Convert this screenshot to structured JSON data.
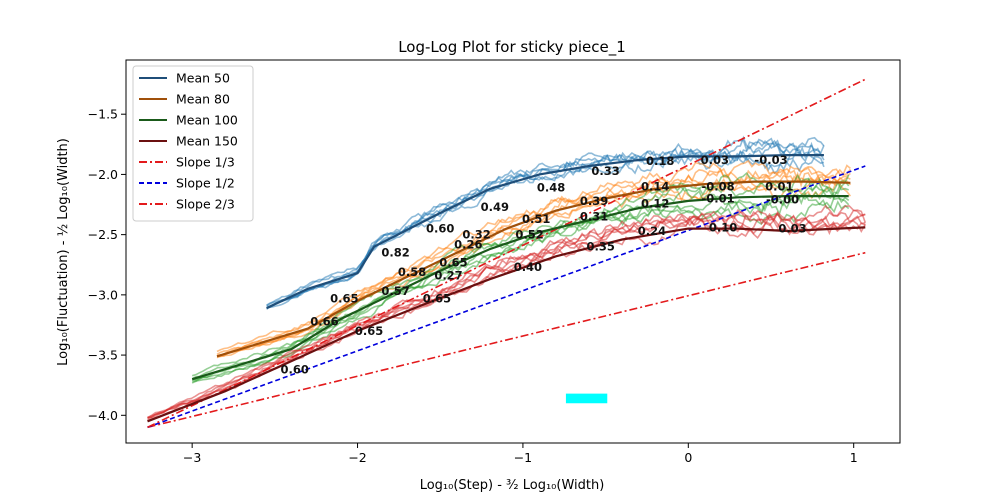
{
  "chart_data": {
    "type": "line",
    "title": "Log-Log Plot for sticky piece_1",
    "xlabel": "Log₁₀(Step) - ³⁄₂ Log₁₀(Width)",
    "ylabel": "Log₁₀(Fluctuation) - ½ Log₁₀(Width)",
    "xlim": [
      -3.4,
      1.28
    ],
    "ylim": [
      -4.23,
      -1.05
    ],
    "x_ticks": [
      -3,
      -2,
      -1,
      0,
      1
    ],
    "x_tick_labels": [
      "−3",
      "−2",
      "−1",
      "0",
      "1"
    ],
    "y_ticks": [
      -4.0,
      -3.5,
      -3.0,
      -2.5,
      -2.0,
      -1.5
    ],
    "y_tick_labels": [
      "−4.0",
      "−3.5",
      "−3.0",
      "−2.5",
      "−2.0",
      "−1.5"
    ],
    "grid": false,
    "legend_position": "top-left",
    "legend": [
      {
        "label": "Mean 50",
        "color": "#1f4e79",
        "style": "solid"
      },
      {
        "label": "Mean 80",
        "color": "#a0500a",
        "style": "solid"
      },
      {
        "label": "Mean 100",
        "color": "#1a5a1a",
        "style": "solid"
      },
      {
        "label": "Mean 150",
        "color": "#6b1010",
        "style": "solid"
      },
      {
        "label": "Slope 1/3",
        "color": "#e31a1c",
        "style": "dashdot"
      },
      {
        "label": "Slope 1/2",
        "color": "#0000dd",
        "style": "dashed"
      },
      {
        "label": "Slope 2/3",
        "color": "#e31a1c",
        "style": "dashdot"
      }
    ],
    "mean_series": [
      {
        "name": "Mean 50",
        "color": "#1f4e79",
        "x": [
          -2.55,
          -2.3,
          -2.0,
          -1.9,
          -1.5,
          -1.2,
          -0.9,
          -0.6,
          -0.3,
          0.0,
          0.3,
          0.6,
          0.82
        ],
        "y": [
          -3.11,
          -2.95,
          -2.82,
          -2.6,
          -2.32,
          -2.12,
          -2.0,
          -1.93,
          -1.88,
          -1.85,
          -1.85,
          -1.84,
          -1.84
        ]
      },
      {
        "name": "Mean 80",
        "color": "#a0500a",
        "x": [
          -2.85,
          -2.3,
          -2.0,
          -1.7,
          -1.4,
          -1.1,
          -0.8,
          -0.5,
          -0.2,
          0.1,
          0.4,
          0.7,
          0.98
        ],
        "y": [
          -3.51,
          -3.28,
          -3.05,
          -2.85,
          -2.65,
          -2.45,
          -2.3,
          -2.2,
          -2.12,
          -2.08,
          -2.06,
          -2.06,
          -2.07
        ]
      },
      {
        "name": "Mean 100",
        "color": "#1a5a1a",
        "x": [
          -3.0,
          -2.4,
          -2.1,
          -1.8,
          -1.5,
          -1.2,
          -0.9,
          -0.6,
          -0.3,
          0.0,
          0.3,
          0.6,
          0.97
        ],
        "y": [
          -3.7,
          -3.45,
          -3.2,
          -3.0,
          -2.8,
          -2.62,
          -2.48,
          -2.38,
          -2.28,
          -2.22,
          -2.19,
          -2.18,
          -2.18
        ]
      },
      {
        "name": "Mean 150",
        "color": "#6b1010",
        "x": [
          -3.27,
          -2.8,
          -2.4,
          -2.0,
          -1.6,
          -1.2,
          -0.8,
          -0.4,
          0.0,
          0.3,
          0.6,
          0.9,
          1.07
        ],
        "y": [
          -4.05,
          -3.8,
          -3.55,
          -3.3,
          -3.08,
          -2.87,
          -2.68,
          -2.54,
          -2.45,
          -2.45,
          -2.47,
          -2.45,
          -2.44
        ]
      }
    ],
    "reference_lines": [
      {
        "name": "Slope 1/3",
        "color": "#e31a1c",
        "style": "dashdot",
        "x": [
          -3.27,
          1.07
        ],
        "y": [
          -4.1,
          -2.65
        ]
      },
      {
        "name": "Slope 1/2",
        "color": "#0000dd",
        "style": "dashed",
        "x": [
          -3.27,
          1.07
        ],
        "y": [
          -4.1,
          -1.93
        ]
      },
      {
        "name": "Slope 2/3",
        "color": "#e31a1c",
        "style": "dashdot",
        "x": [
          -3.27,
          1.07
        ],
        "y": [
          -4.1,
          -1.21
        ]
      }
    ],
    "annotations": [
      {
        "text": "0.33",
        "x": -0.5,
        "y": -1.97
      },
      {
        "text": "0.18",
        "x": -0.17,
        "y": -1.89
      },
      {
        "text": "0.03",
        "x": 0.16,
        "y": -1.88
      },
      {
        "text": "-0.03",
        "x": 0.5,
        "y": -1.88
      },
      {
        "text": "0.48",
        "x": -0.83,
        "y": -2.11
      },
      {
        "text": "0.14",
        "x": -0.2,
        "y": -2.1
      },
      {
        "text": "-0.08",
        "x": 0.18,
        "y": -2.1
      },
      {
        "text": "0.01",
        "x": 0.55,
        "y": -2.1
      },
      {
        "text": "0.49",
        "x": -1.17,
        "y": -2.27
      },
      {
        "text": "0.39",
        "x": -0.57,
        "y": -2.22
      },
      {
        "text": "0.12",
        "x": -0.2,
        "y": -2.24
      },
      {
        "text": "-0.01",
        "x": 0.18,
        "y": -2.2
      },
      {
        "text": "-0.00",
        "x": 0.57,
        "y": -2.21
      },
      {
        "text": "0.51",
        "x": -0.92,
        "y": -2.37
      },
      {
        "text": "0.31",
        "x": -0.57,
        "y": -2.35
      },
      {
        "text": "0.60",
        "x": -1.5,
        "y": -2.45
      },
      {
        "text": "0.32",
        "x": -1.28,
        "y": -2.5
      },
      {
        "text": "0.52",
        "x": -0.96,
        "y": -2.5
      },
      {
        "text": "0.24",
        "x": -0.22,
        "y": -2.47
      },
      {
        "text": "0.10",
        "x": 0.21,
        "y": -2.44
      },
      {
        "text": "0.03",
        "x": 0.63,
        "y": -2.45
      },
      {
        "text": "0.26",
        "x": -1.33,
        "y": -2.58
      },
      {
        "text": "0.35",
        "x": -0.53,
        "y": -2.6
      },
      {
        "text": "0.82",
        "x": -1.77,
        "y": -2.65
      },
      {
        "text": "0.65",
        "x": -1.42,
        "y": -2.73
      },
      {
        "text": "0.40",
        "x": -0.97,
        "y": -2.77
      },
      {
        "text": "0.58",
        "x": -1.67,
        "y": -2.81
      },
      {
        "text": "0.27",
        "x": -1.45,
        "y": -2.84
      },
      {
        "text": "0.57",
        "x": -1.77,
        "y": -2.97
      },
      {
        "text": "0.65",
        "x": -2.08,
        "y": -3.03
      },
      {
        "text": "0.65",
        "x": -1.52,
        "y": -3.03
      },
      {
        "text": "0.66",
        "x": -2.2,
        "y": -3.22
      },
      {
        "text": "0.65",
        "x": -1.93,
        "y": -3.3
      },
      {
        "text": "0.60",
        "x": -2.38,
        "y": -3.62
      }
    ],
    "overlay_rect": {
      "color": "#00ffff",
      "x_range": [
        -0.74,
        -0.49
      ],
      "y_range": [
        -3.9,
        -3.82
      ]
    }
  }
}
